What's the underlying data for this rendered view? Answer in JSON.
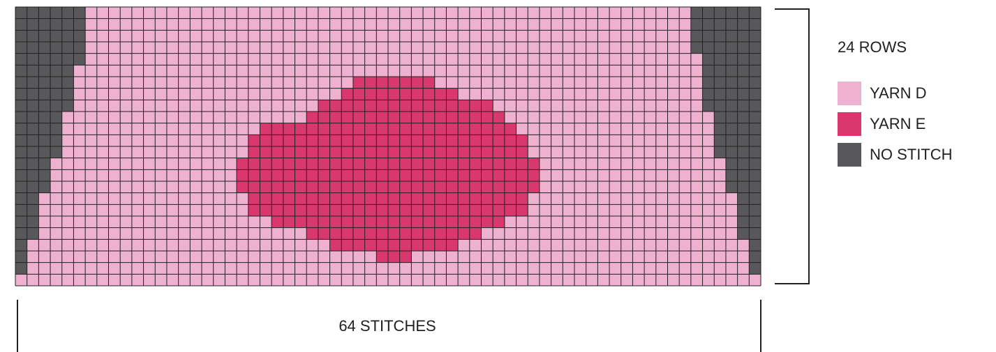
{
  "chart_data": {
    "type": "heatmap",
    "columns": 64,
    "rows": 24,
    "row_label": "24 ROWS",
    "column_label": "64 STITCHES",
    "legend": [
      {
        "key": "D",
        "label": "YARN D",
        "color": "#efb1d0"
      },
      {
        "key": "E",
        "label": "YARN E",
        "color": "#d9386f"
      },
      {
        "key": "N",
        "label": "NO STITCH",
        "color": "#58585a"
      }
    ],
    "grid_color": "#231f20",
    "no_stitch_left_counts": [
      6,
      6,
      6,
      6,
      6,
      5,
      5,
      5,
      5,
      4,
      4,
      4,
      4,
      3,
      3,
      3,
      2,
      2,
      2,
      2,
      1,
      1,
      1,
      0
    ],
    "no_stitch_right_counts": [
      6,
      6,
      6,
      6,
      5,
      5,
      5,
      5,
      5,
      4,
      4,
      4,
      4,
      3,
      3,
      3,
      2,
      2,
      2,
      2,
      1,
      1,
      1,
      0
    ],
    "yarn_e_spans": [
      {
        "row": 6,
        "from": 29,
        "to": 35
      },
      {
        "row": 7,
        "from": 28,
        "to": 37
      },
      {
        "row": 8,
        "from": 26,
        "to": 40
      },
      {
        "row": 9,
        "from": 25,
        "to": 41
      },
      {
        "row": 10,
        "from": 21,
        "to": 42
      },
      {
        "row": 11,
        "from": 20,
        "to": 43
      },
      {
        "row": 12,
        "from": 20,
        "to": 43
      },
      {
        "row": 13,
        "from": 19,
        "to": 44
      },
      {
        "row": 14,
        "from": 19,
        "to": 44
      },
      {
        "row": 15,
        "from": 19,
        "to": 44
      },
      {
        "row": 16,
        "from": 20,
        "to": 43
      },
      {
        "row": 17,
        "from": 20,
        "to": 43
      },
      {
        "row": 18,
        "from": 22,
        "to": 41
      },
      {
        "row": 19,
        "from": 25,
        "to": 39
      },
      {
        "row": 20,
        "from": 27,
        "to": 37
      },
      {
        "row": 21,
        "from": 31,
        "to": 33
      }
    ]
  }
}
